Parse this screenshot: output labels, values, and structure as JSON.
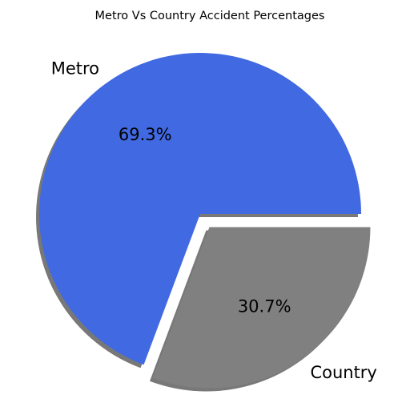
{
  "chart_data": {
    "type": "pie",
    "title": "Metro Vs Country Accident Percentages",
    "slices": [
      {
        "label": "Metro",
        "value": 69.3,
        "pct_label": "69.3%",
        "color": "#4169e1",
        "explode": false
      },
      {
        "label": "Country",
        "value": 30.7,
        "pct_label": "30.7%",
        "color": "#808080",
        "explode": true
      }
    ],
    "start_angle_deg": 0,
    "direction": "counterclockwise",
    "shadow": true,
    "shadow_color": "#696969",
    "legend": "none"
  }
}
